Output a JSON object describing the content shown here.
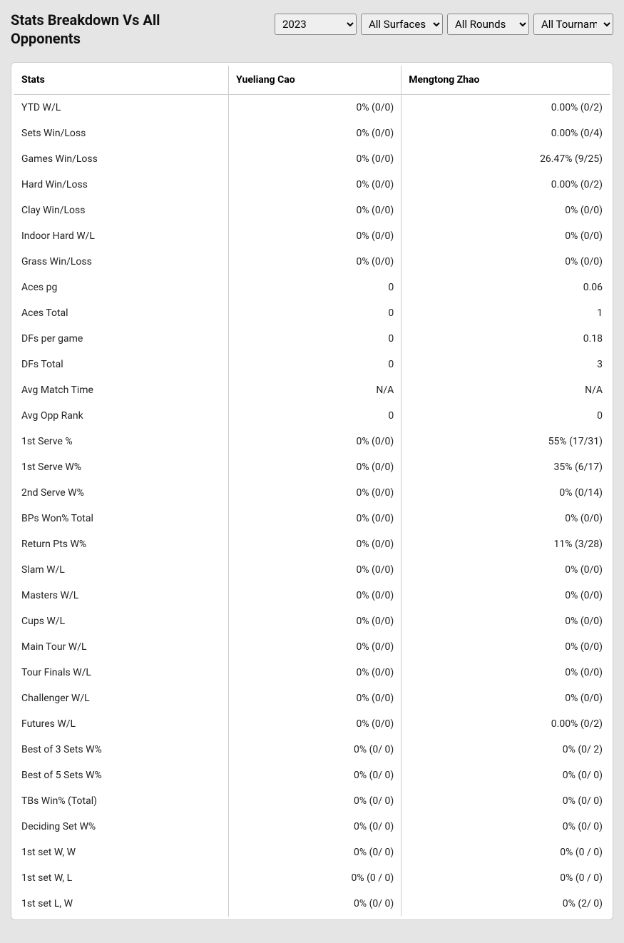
{
  "header": {
    "title": "Stats Breakdown Vs All Opponents"
  },
  "filters": {
    "year": {
      "selected": "2023",
      "options": [
        "2023"
      ]
    },
    "surface": {
      "selected": "All Surfaces",
      "options": [
        "All Surfaces"
      ]
    },
    "rounds": {
      "selected": "All Rounds",
      "options": [
        "All Rounds"
      ]
    },
    "tournament": {
      "selected": "All Tournaments",
      "options": [
        "All Tournaments"
      ]
    }
  },
  "table": {
    "columns": [
      "Stats",
      "Yueliang Cao",
      "Mengtong Zhao"
    ],
    "rows": [
      [
        "YTD W/L",
        "0% (0/0)",
        "0.00% (0/2)"
      ],
      [
        "Sets Win/Loss",
        "0% (0/0)",
        "0.00% (0/4)"
      ],
      [
        "Games Win/Loss",
        "0% (0/0)",
        "26.47% (9/25)"
      ],
      [
        "Hard Win/Loss",
        "0% (0/0)",
        "0.00% (0/2)"
      ],
      [
        "Clay Win/Loss",
        "0% (0/0)",
        "0% (0/0)"
      ],
      [
        "Indoor Hard W/L",
        "0% (0/0)",
        "0% (0/0)"
      ],
      [
        "Grass Win/Loss",
        "0% (0/0)",
        "0% (0/0)"
      ],
      [
        "Aces pg",
        "0",
        "0.06"
      ],
      [
        "Aces Total",
        "0",
        "1"
      ],
      [
        "DFs per game",
        "0",
        "0.18"
      ],
      [
        "DFs Total",
        "0",
        "3"
      ],
      [
        "Avg Match Time",
        "N/A",
        "N/A"
      ],
      [
        "Avg Opp Rank",
        "0",
        "0"
      ],
      [
        "1st Serve %",
        "0% (0/0)",
        "55% (17/31)"
      ],
      [
        "1st Serve W%",
        "0% (0/0)",
        "35% (6/17)"
      ],
      [
        "2nd Serve W%",
        "0% (0/0)",
        "0% (0/14)"
      ],
      [
        "BPs Won% Total",
        "0% (0/0)",
        "0% (0/0)"
      ],
      [
        "Return Pts W%",
        "0% (0/0)",
        "11% (3/28)"
      ],
      [
        "Slam W/L",
        "0% (0/0)",
        "0% (0/0)"
      ],
      [
        "Masters W/L",
        "0% (0/0)",
        "0% (0/0)"
      ],
      [
        "Cups W/L",
        "0% (0/0)",
        "0% (0/0)"
      ],
      [
        "Main Tour W/L",
        "0% (0/0)",
        "0% (0/0)"
      ],
      [
        "Tour Finals W/L",
        "0% (0/0)",
        "0% (0/0)"
      ],
      [
        "Challenger W/L",
        "0% (0/0)",
        "0% (0/0)"
      ],
      [
        "Futures W/L",
        "0% (0/0)",
        "0.00% (0/2)"
      ],
      [
        "Best of 3 Sets W%",
        "0% (0/ 0)",
        "0% (0/ 2)"
      ],
      [
        "Best of 5 Sets W%",
        "0% (0/ 0)",
        "0% (0/ 0)"
      ],
      [
        "TBs Win% (Total)",
        "0% (0/ 0)",
        "0% (0/ 0)"
      ],
      [
        "Deciding Set W%",
        "0% (0/ 0)",
        "0% (0/ 0)"
      ],
      [
        "1st set W, W",
        "0% (0/ 0)",
        "0% (0 / 0)"
      ],
      [
        "1st set W, L",
        "0% (0 / 0)",
        "0% (0 / 0)"
      ],
      [
        "1st set L, W",
        "0% (0/ 0)",
        "0% (2/ 0)"
      ]
    ]
  },
  "style": {
    "background_color": "#e5e5e5",
    "table_background": "#ffffff",
    "border_color": "#cccccc",
    "text_color": "#222222",
    "header_text_color": "#111111",
    "title_fontsize": 20,
    "header_fontsize": 14,
    "cell_fontsize": 14
  }
}
